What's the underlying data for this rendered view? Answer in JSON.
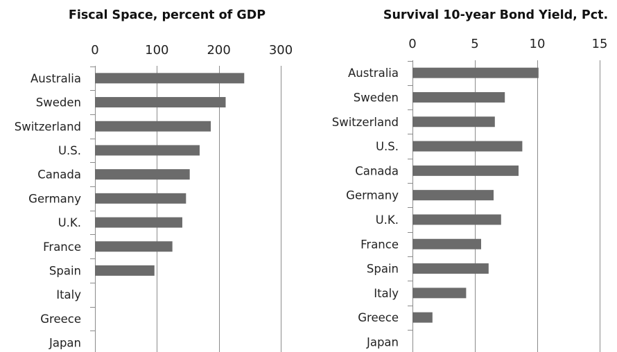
{
  "chart_data": [
    {
      "type": "bar",
      "orientation": "horizontal",
      "title": "Fiscal Space, percent of GDP",
      "xlabel": "",
      "ylabel": "",
      "xlim": [
        0,
        300
      ],
      "xticks": [
        0,
        100,
        200,
        300
      ],
      "x_axis_position": "top",
      "grid": true,
      "categories": [
        "Australia",
        "Sweden",
        "Switzerland",
        "U.S.",
        "Canada",
        "Germany",
        "U.K.",
        "France",
        "Spain",
        "Italy",
        "Greece",
        "Japan"
      ],
      "values": [
        241,
        211,
        187,
        169,
        153,
        147,
        141,
        125,
        96,
        0,
        0,
        0
      ],
      "bar_color": "#6b6b6b"
    },
    {
      "type": "bar",
      "orientation": "horizontal",
      "title": "Survival 10-year Bond Yield, Pct.",
      "xlabel": "",
      "ylabel": "",
      "xlim": [
        0,
        15
      ],
      "xticks": [
        0,
        5,
        10,
        15
      ],
      "x_axis_position": "top",
      "grid": true,
      "categories": [
        "Australia",
        "Sweden",
        "Switzerland",
        "U.S.",
        "Canada",
        "Germany",
        "U.K.",
        "France",
        "Spain",
        "Italy",
        "Greece",
        "Japan"
      ],
      "values": [
        10.1,
        7.4,
        6.6,
        8.8,
        8.5,
        6.5,
        7.1,
        5.5,
        6.1,
        4.3,
        1.6,
        0
      ],
      "bar_color": "#6b6b6b"
    }
  ]
}
